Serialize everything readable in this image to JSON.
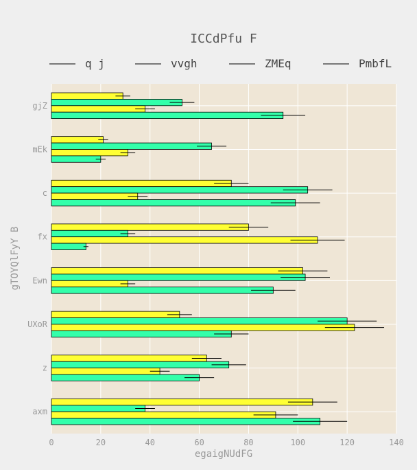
{
  "chart_data": {
    "type": "bar",
    "orientation": "horizontal",
    "title": "ICCdPfu F",
    "xlabel": "egaigNUdFG",
    "ylabel": "gTOYQlFyY B",
    "xlim": [
      0,
      140
    ],
    "xticks": [
      "0",
      "20",
      "40",
      "60",
      "80",
      "100",
      "120",
      "140"
    ],
    "categories": [
      "gjZ",
      "mEk",
      "c",
      "fx",
      "Ewn",
      "UXoR",
      "z",
      "axm"
    ],
    "series": [
      {
        "name": "q j",
        "color": "#ffff33",
        "values": [
          29,
          21,
          73,
          80,
          102,
          52,
          63,
          106
        ],
        "errors": [
          3,
          2,
          7,
          8,
          10,
          5,
          6,
          10
        ]
      },
      {
        "name": "vvgh",
        "color": "#33ffaa",
        "values": [
          53,
          65,
          104,
          31,
          103,
          120,
          72,
          38
        ],
        "errors": [
          5,
          6,
          10,
          3,
          10,
          12,
          7,
          4
        ]
      },
      {
        "name": "ZMEq",
        "color": "#ffff33",
        "values": [
          38,
          31,
          35,
          108,
          31,
          123,
          44,
          91
        ],
        "errors": [
          4,
          3,
          4,
          11,
          3,
          12,
          4,
          9
        ]
      },
      {
        "name": "PmbfL",
        "color": "#33ffaa",
        "values": [
          94,
          20,
          99,
          14,
          90,
          73,
          60,
          109
        ],
        "errors": [
          9,
          2,
          10,
          1,
          9,
          7,
          6,
          11
        ]
      }
    ],
    "grid": true,
    "legend": "top"
  }
}
